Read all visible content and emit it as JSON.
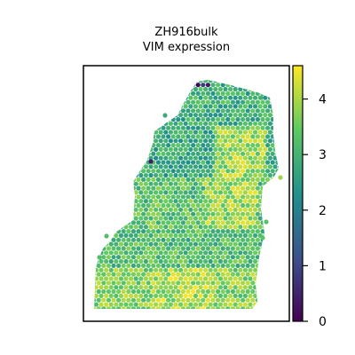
{
  "chart_data": {
    "type": "heatmap",
    "title": "ZH916bulk",
    "subtitle": "VIM expression",
    "xlabel": "",
    "ylabel": "",
    "colorbar": {
      "colormap": "viridis",
      "range": [
        0,
        4.6
      ],
      "ticks": [
        0,
        1,
        2,
        3,
        4
      ],
      "tick_labels": [
        "0",
        "1",
        "2",
        "3",
        "4"
      ]
    },
    "grid": false,
    "spot_layout": "hexagonal",
    "region_values": [
      {
        "region": "top-notch",
        "value": 0.4
      },
      {
        "region": "upper-edge",
        "value": 2.9
      },
      {
        "region": "upper-middle",
        "value": 2.8
      },
      {
        "region": "middle",
        "value": 3.3
      },
      {
        "region": "middle-right",
        "value": 3.9
      },
      {
        "region": "lower-left",
        "value": 3.2
      },
      {
        "region": "bottom",
        "value": 3.7
      },
      {
        "region": "bottom-middle",
        "value": 4.0
      }
    ]
  }
}
